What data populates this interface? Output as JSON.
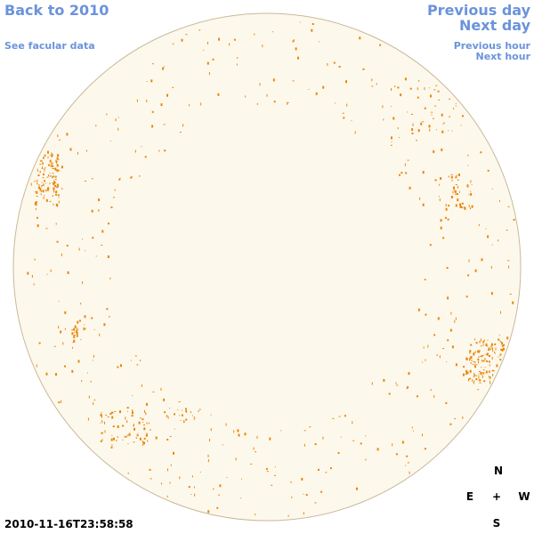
{
  "nav": {
    "back": "Back to 2010",
    "facular": "See facular data",
    "previous_day": "Previous day",
    "next_day": "Next day",
    "previous_hour": "Previous hour",
    "next_hour": "Next hour"
  },
  "timestamp": "2010-11-16T23:58:58",
  "compass": {
    "north": "N",
    "east": "E",
    "center": "+",
    "west": "W",
    "south": "S"
  }
}
